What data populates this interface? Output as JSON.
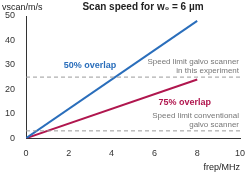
{
  "chart_data": {
    "type": "line",
    "title": "Scan speed for w₀ = 6 µm",
    "x_label": "frep/MHz",
    "y_label": "vscan/m/s",
    "xlim": [
      0,
      10
    ],
    "xticks": [
      0,
      2,
      4,
      6,
      8,
      10
    ],
    "ylim": [
      0,
      50
    ],
    "yticks": [
      0,
      10,
      20,
      30,
      40,
      50
    ],
    "grid": false,
    "series": [
      {
        "name": "50% overlap",
        "color": "#2a6ebb",
        "x": [
          0,
          8
        ],
        "values": [
          0,
          48
        ]
      },
      {
        "name": "75% overlap",
        "color": "#b0164e",
        "x": [
          0,
          8
        ],
        "values": [
          0,
          24
        ]
      }
    ],
    "reference_lines": [
      {
        "value": 25,
        "label": [
          "Speed limit galvo scanner",
          "in this experiment"
        ],
        "color": "#9a9a9a",
        "line_style": "dashed"
      },
      {
        "value": 3,
        "label": [
          "Speed limit conventional",
          "galvo scanner"
        ],
        "color": "#9a9a9a",
        "line_style": "dashed"
      }
    ]
  }
}
